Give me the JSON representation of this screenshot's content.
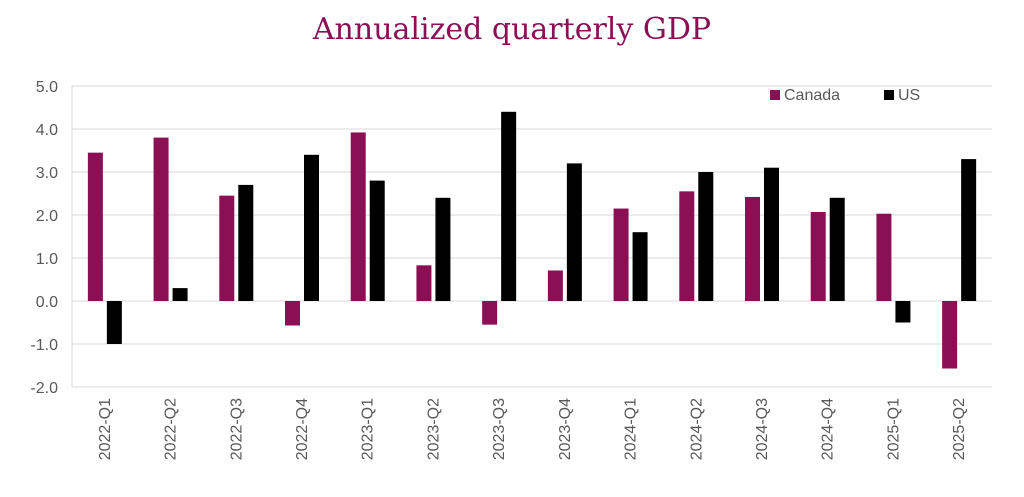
{
  "chart_data": {
    "type": "bar",
    "title": "Annualized quarterly GDP",
    "xlabel": "",
    "ylabel": "",
    "ylim": [
      -2.0,
      5.0
    ],
    "yticks": [
      -2.0,
      -1.0,
      0.0,
      1.0,
      2.0,
      3.0,
      4.0,
      5.0
    ],
    "ytick_labels": [
      "-2.0",
      "-1.0",
      "0.0",
      "1.0",
      "2.0",
      "3.0",
      "4.0",
      "5.0"
    ],
    "grid": true,
    "legend_position": "top-right",
    "categories": [
      "2022-Q1",
      "2022-Q2",
      "2022-Q3",
      "2022-Q4",
      "2023-Q1",
      "2023-Q2",
      "2023-Q3",
      "2023-Q4",
      "2024-Q1",
      "2024-Q2",
      "2024-Q3",
      "2024-Q4",
      "2025-Q1",
      "2025-Q2"
    ],
    "series": [
      {
        "name": "Canada",
        "color": "#8a0f54",
        "values": [
          3.45,
          3.8,
          2.45,
          -0.57,
          3.92,
          0.83,
          -0.55,
          0.71,
          2.15,
          2.55,
          2.42,
          2.07,
          2.03,
          -1.57
        ]
      },
      {
        "name": "US",
        "color": "#000000",
        "values": [
          -1.0,
          0.3,
          2.7,
          3.4,
          2.8,
          2.4,
          4.4,
          3.2,
          1.6,
          3.0,
          3.1,
          2.4,
          -0.5,
          3.3
        ]
      }
    ]
  }
}
